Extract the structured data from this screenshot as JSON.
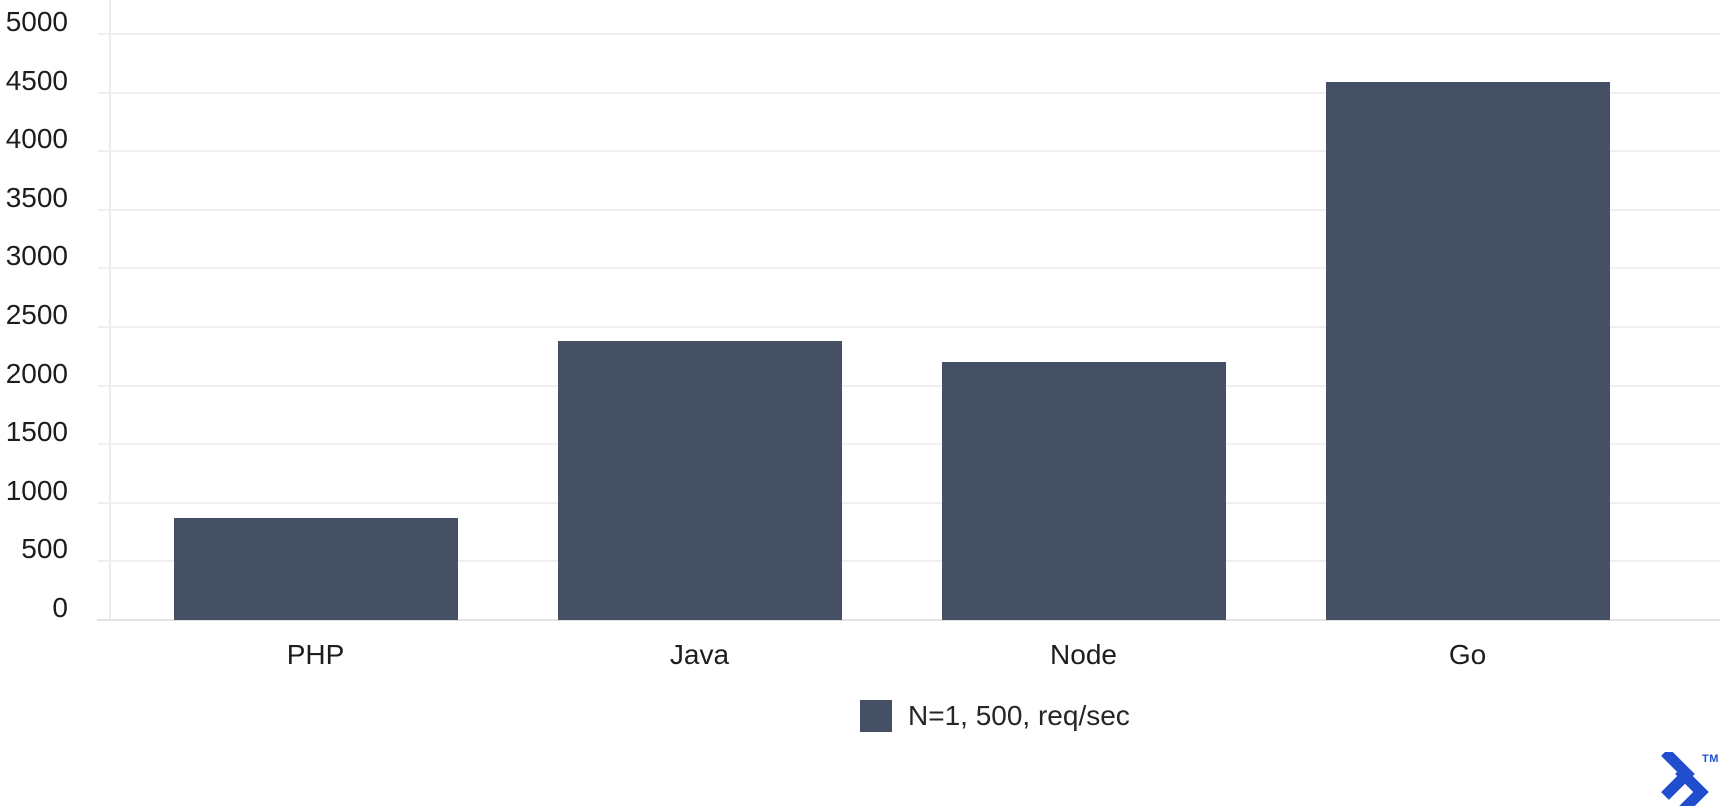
{
  "chart_data": {
    "type": "bar",
    "title": "",
    "xlabel": "",
    "ylabel": "",
    "categories": [
      "PHP",
      "Java",
      "Node",
      "Go"
    ],
    "series": [
      {
        "name": "N=1, 500, req/sec",
        "values": [
          870,
          2380,
          2200,
          4590
        ]
      }
    ],
    "ylim": [
      0,
      5000
    ],
    "ytick_interval": 500,
    "yticks": [
      0,
      500,
      1000,
      1500,
      2000,
      2500,
      3000,
      3500,
      4000,
      4500,
      5000
    ],
    "grid": true,
    "legend": {
      "label": "N=1, 500, req/sec",
      "position": "bottom-center"
    },
    "colors": {
      "bar": "#455064",
      "gridline": "#efefef",
      "axis": "#e3e3e3",
      "text": "#1d1d1d"
    }
  },
  "branding": {
    "trademark_label": "TM",
    "logo_color": "#204ECF"
  }
}
